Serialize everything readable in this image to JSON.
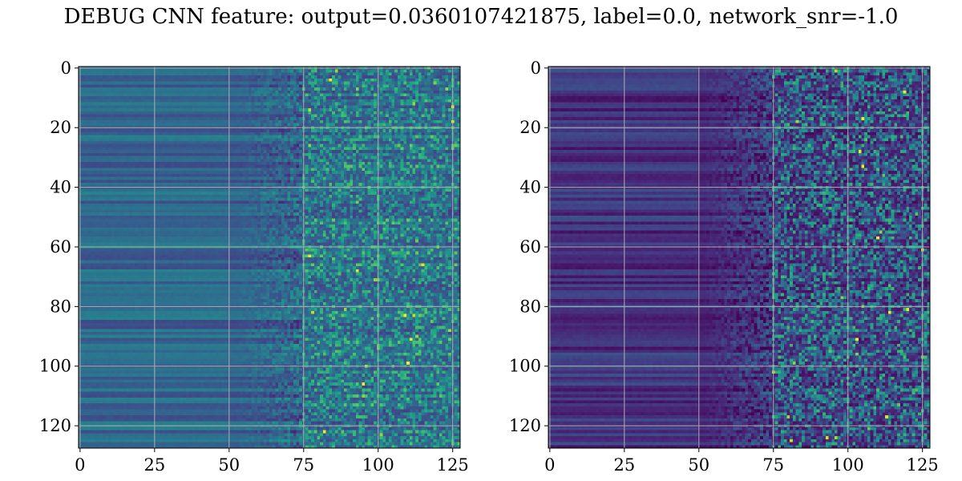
{
  "title": "DEBUG CNN feature: output=0.0360107421875, label=0.0, network_snr=-1.0",
  "chart_data": [
    {
      "type": "heatmap",
      "colormap": "viridis",
      "rows": 128,
      "cols": 128,
      "xlim": [
        0,
        127
      ],
      "ylim": [
        127,
        0
      ],
      "xticks": [
        0,
        25,
        50,
        75,
        100,
        125
      ],
      "yticks": [
        0,
        20,
        40,
        60,
        80,
        100,
        120
      ],
      "grid": true,
      "variant": "smooth-low-cols-noisy-high-cols"
    },
    {
      "type": "heatmap",
      "colormap": "viridis",
      "rows": 128,
      "cols": 128,
      "xlim": [
        0,
        127
      ],
      "ylim": [
        127,
        0
      ],
      "xticks": [
        0,
        25,
        50,
        75,
        100,
        125
      ],
      "yticks": [
        0,
        20,
        40,
        60,
        80,
        100,
        120
      ],
      "grid": true,
      "variant": "dark-low-cols-noisy-high-cols"
    }
  ],
  "colors": {
    "grid": "#b0b0b0",
    "axis": "#000000"
  }
}
